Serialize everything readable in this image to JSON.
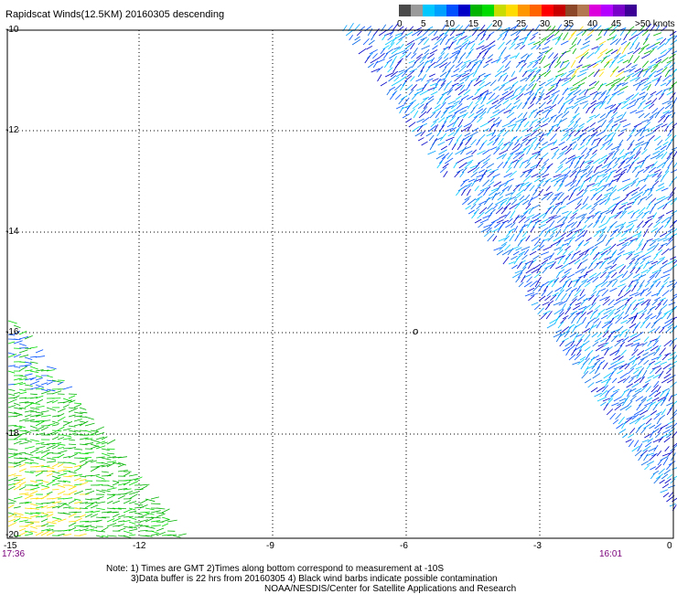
{
  "title": "Rapidscat Winds(12.5KM) 20160305 descending",
  "colorbar": {
    "labels": [
      "0",
      "5",
      "10",
      "15",
      "20",
      "25",
      "30",
      "35",
      "40",
      "45",
      ">50 knots"
    ],
    "colors": [
      "#4a4a4a",
      "#9a9a9a",
      "#00c8ff",
      "#00a0ff",
      "#0050ff",
      "#0000c8",
      "#00b400",
      "#00dc00",
      "#c8dc00",
      "#ffdc00",
      "#ff9600",
      "#ff6400",
      "#ff0000",
      "#c80000",
      "#8c4628",
      "#b47850",
      "#dc00dc",
      "#b400ff",
      "#7800c8",
      "#3c0096"
    ]
  },
  "map": {
    "lat_labels": [
      "-10",
      "-12",
      "-14",
      "-16",
      "-18",
      "-20"
    ],
    "lon_labels": [
      "-15",
      "-12",
      "-9",
      "-6",
      "-3",
      "0"
    ],
    "time_left": "17:36",
    "time_right": "16:01",
    "eye_marker": "o"
  },
  "notes": {
    "line1": "Note: 1) Times are GMT 2)Times along bottom correspond to measurement at -10S",
    "line2": "3)Data buffer is 22 hrs from 20160305 4) Black wind barbs indicate possible contamination",
    "line3": "NOAA/NESDIS/Center for Satellite Applications and Research"
  }
}
